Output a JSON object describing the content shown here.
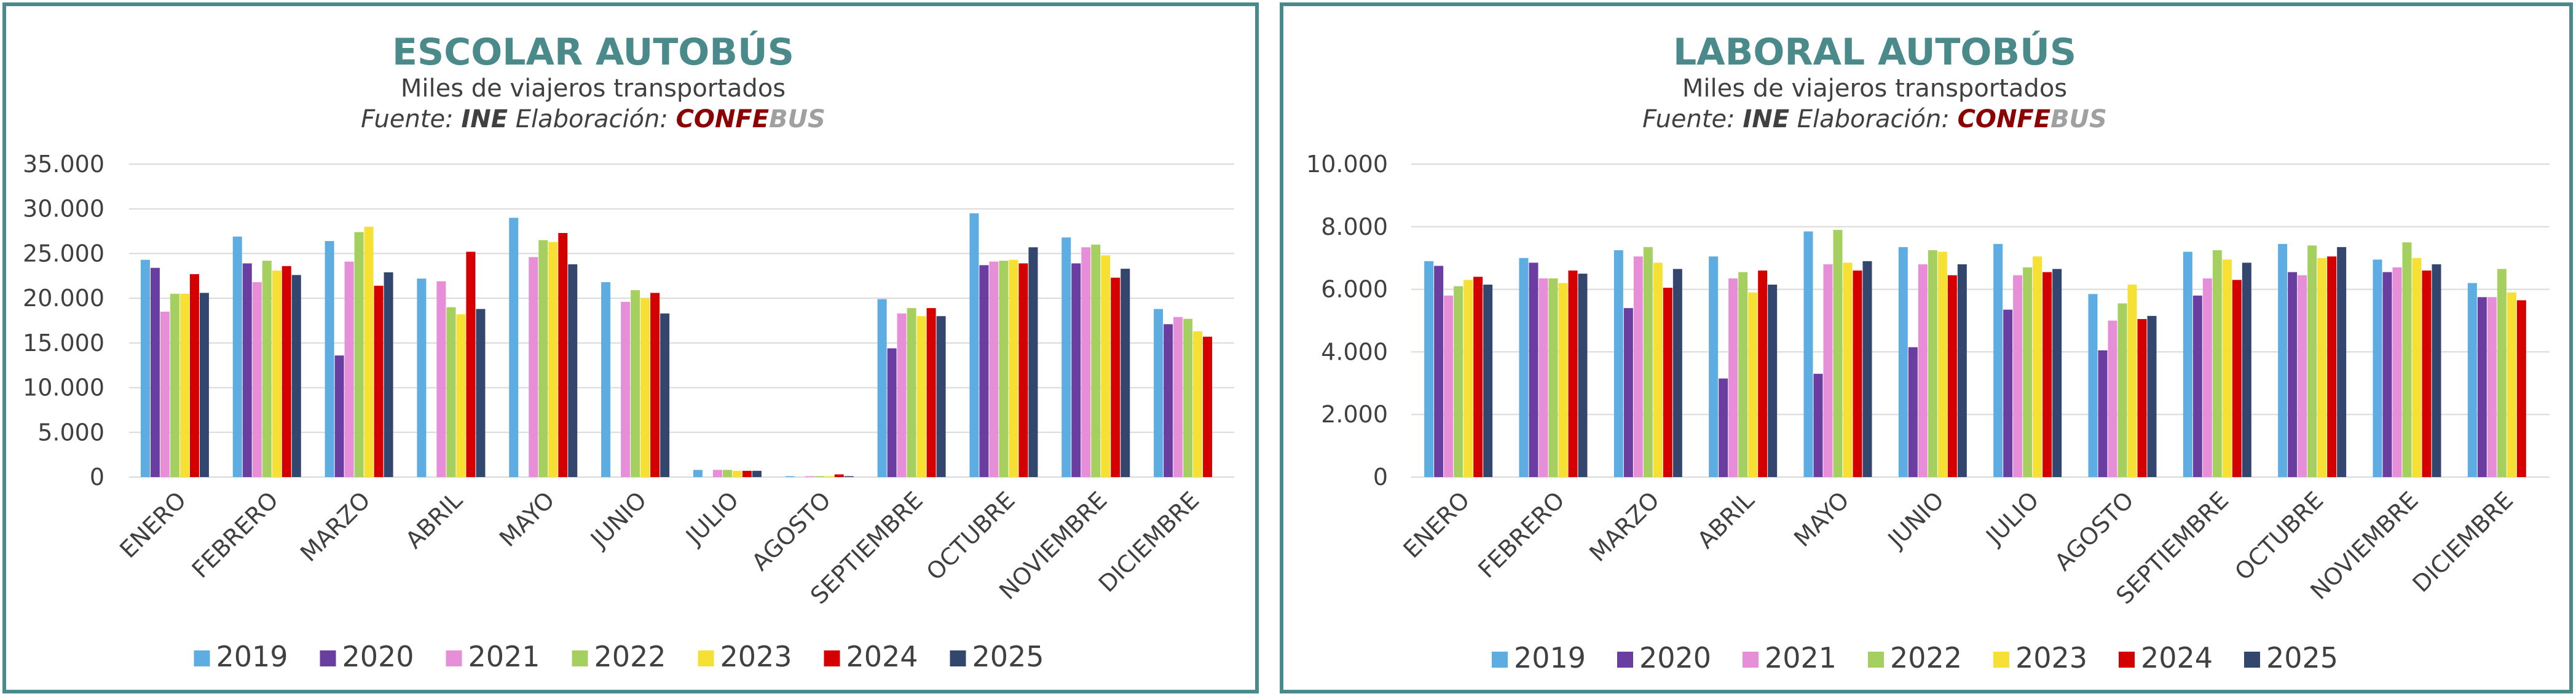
{
  "chart_data": [
    {
      "type": "bar",
      "title": "ESCOLAR AUTOBÚS",
      "subtitle": "Miles de viajeros transportados",
      "source": {
        "fuente_label": "Fuente:",
        "fuente": "INE",
        "elab_label": "Elaboración:",
        "elab_a": "CONFE",
        "elab_b": "BUS"
      },
      "categories": [
        "ENERO",
        "FEBRERO",
        "MARZO",
        "ABRIL",
        "MAYO",
        "JUNIO",
        "JULIO",
        "AGOSTO",
        "SEPTIEMBRE",
        "OCTUBRE",
        "NOVIEMBRE",
        "DICIEMBRE"
      ],
      "ylim": [
        0,
        35000
      ],
      "yticks": [
        0,
        5000,
        10000,
        15000,
        20000,
        25000,
        30000,
        35000
      ],
      "ytick_labels": [
        "0",
        "5.000",
        "10.000",
        "15.000",
        "20.000",
        "25.000",
        "30.000",
        "35.000"
      ],
      "grid": true,
      "legend": "bottom",
      "series": [
        {
          "name": "2019",
          "color": "#5dade2",
          "values": [
            24300,
            26900,
            26400,
            22200,
            29000,
            21800,
            800,
            100,
            19900,
            29500,
            26800,
            18800
          ]
        },
        {
          "name": "2020",
          "color": "#6a3ea1",
          "values": [
            23400,
            23900,
            13600,
            0,
            0,
            0,
            0,
            0,
            14400,
            23700,
            23900,
            17100
          ]
        },
        {
          "name": "2021",
          "color": "#e78ed8",
          "values": [
            18500,
            21800,
            24100,
            21900,
            24600,
            19600,
            800,
            100,
            18300,
            24100,
            25700,
            17900
          ]
        },
        {
          "name": "2022",
          "color": "#a5d05f",
          "values": [
            20500,
            24200,
            27400,
            19000,
            26500,
            20900,
            800,
            100,
            18900,
            24200,
            26000,
            17700
          ]
        },
        {
          "name": "2023",
          "color": "#f5e033",
          "values": [
            20500,
            23100,
            28000,
            18200,
            26300,
            20000,
            700,
            100,
            18000,
            24300,
            24800,
            16300
          ]
        },
        {
          "name": "2024",
          "color": "#d40000",
          "values": [
            22700,
            23600,
            21400,
            25200,
            27300,
            20600,
            700,
            300,
            18900,
            23900,
            22300,
            15700
          ]
        },
        {
          "name": "2025",
          "color": "#33466e",
          "values": [
            20600,
            22600,
            22900,
            18800,
            23800,
            18300,
            700,
            100,
            18000,
            25700,
            23300,
            null
          ]
        }
      ]
    },
    {
      "type": "bar",
      "title": "LABORAL AUTOBÚS",
      "subtitle": "Miles de viajeros transportados",
      "source": {
        "fuente_label": "Fuente:",
        "fuente": "INE",
        "elab_label": "Elaboración:",
        "elab_a": "CONFE",
        "elab_b": "BUS"
      },
      "categories": [
        "ENERO",
        "FEBRERO",
        "MARZO",
        "ABRIL",
        "MAYO",
        "JUNIO",
        "JULIO",
        "AGOSTO",
        "SEPTIEMBRE",
        "OCTUBRE",
        "NOVIEMBRE",
        "DICIEMBRE"
      ],
      "ylim": [
        0,
        10000
      ],
      "yticks": [
        0,
        2000,
        4000,
        6000,
        8000,
        10000
      ],
      "ytick_labels": [
        "0",
        "2.000",
        "4.000",
        "6.000",
        "8.000",
        "10.000"
      ],
      "grid": true,
      "legend": "bottom",
      "series": [
        {
          "name": "2019",
          "color": "#5dade2",
          "values": [
            6900,
            7000,
            7250,
            7050,
            7850,
            7350,
            7450,
            5850,
            7200,
            7450,
            6950,
            6200
          ]
        },
        {
          "name": "2020",
          "color": "#6a3ea1",
          "values": [
            6750,
            6850,
            5400,
            3150,
            3300,
            4150,
            5350,
            4050,
            5800,
            6550,
            6550,
            5750
          ]
        },
        {
          "name": "2021",
          "color": "#e78ed8",
          "values": [
            5800,
            6350,
            7050,
            6350,
            6800,
            6800,
            6450,
            5000,
            6350,
            6450,
            6700,
            5750
          ]
        },
        {
          "name": "2022",
          "color": "#a5d05f",
          "values": [
            6100,
            6350,
            7350,
            6550,
            7900,
            7250,
            6700,
            5550,
            7250,
            7400,
            7500,
            6650
          ]
        },
        {
          "name": "2023",
          "color": "#f5e033",
          "values": [
            6300,
            6200,
            6850,
            5900,
            6850,
            7200,
            7050,
            6150,
            6950,
            7000,
            7000,
            5900
          ]
        },
        {
          "name": "2024",
          "color": "#d40000",
          "values": [
            6400,
            6600,
            6050,
            6600,
            6600,
            6450,
            6550,
            5050,
            6300,
            7050,
            6600,
            5650
          ]
        },
        {
          "name": "2025",
          "color": "#33466e",
          "values": [
            6150,
            6500,
            6650,
            6150,
            6900,
            6800,
            6650,
            5150,
            6850,
            7350,
            6800,
            null
          ]
        }
      ]
    }
  ]
}
